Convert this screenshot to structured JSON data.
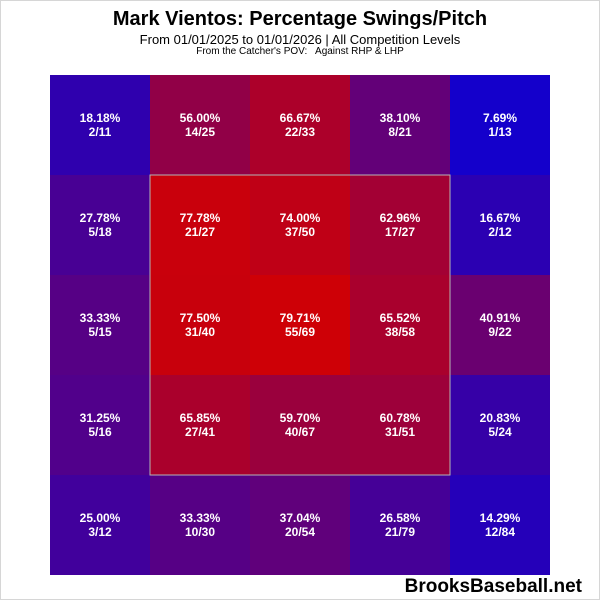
{
  "title": "Mark Vientos: Percentage Swings/Pitch",
  "subtitle": "From 01/01/2025 to 01/01/2026 | All Competition Levels",
  "pov": "From the Catcher's POV:   Against RHP & LHP",
  "footer": "BrooksBaseball.net",
  "colors": {
    "low": "#0000e0",
    "high": "#d40000",
    "zone_border": "#b4b4b4"
  },
  "chart_data": {
    "type": "heatmap",
    "rows": 5,
    "cols": 5,
    "cells": [
      [
        {
          "pct": "18.18%",
          "count": "2/11"
        },
        {
          "pct": "56.00%",
          "count": "14/25"
        },
        {
          "pct": "66.67%",
          "count": "22/33"
        },
        {
          "pct": "38.10%",
          "count": "8/21"
        },
        {
          "pct": "7.69%",
          "count": "1/13"
        }
      ],
      [
        {
          "pct": "27.78%",
          "count": "5/18"
        },
        {
          "pct": "77.78%",
          "count": "21/27"
        },
        {
          "pct": "74.00%",
          "count": "37/50"
        },
        {
          "pct": "62.96%",
          "count": "17/27"
        },
        {
          "pct": "16.67%",
          "count": "2/12"
        }
      ],
      [
        {
          "pct": "33.33%",
          "count": "5/15"
        },
        {
          "pct": "77.50%",
          "count": "31/40"
        },
        {
          "pct": "79.71%",
          "count": "55/69"
        },
        {
          "pct": "65.52%",
          "count": "38/58"
        },
        {
          "pct": "40.91%",
          "count": "9/22"
        }
      ],
      [
        {
          "pct": "31.25%",
          "count": "5/16"
        },
        {
          "pct": "65.85%",
          "count": "27/41"
        },
        {
          "pct": "59.70%",
          "count": "40/67"
        },
        {
          "pct": "60.78%",
          "count": "31/51"
        },
        {
          "pct": "20.83%",
          "count": "5/24"
        }
      ],
      [
        {
          "pct": "25.00%",
          "count": "3/12"
        },
        {
          "pct": "33.33%",
          "count": "10/30"
        },
        {
          "pct": "37.04%",
          "count": "20/54"
        },
        {
          "pct": "26.58%",
          "count": "21/79"
        },
        {
          "pct": "14.29%",
          "count": "12/84"
        }
      ]
    ]
  }
}
